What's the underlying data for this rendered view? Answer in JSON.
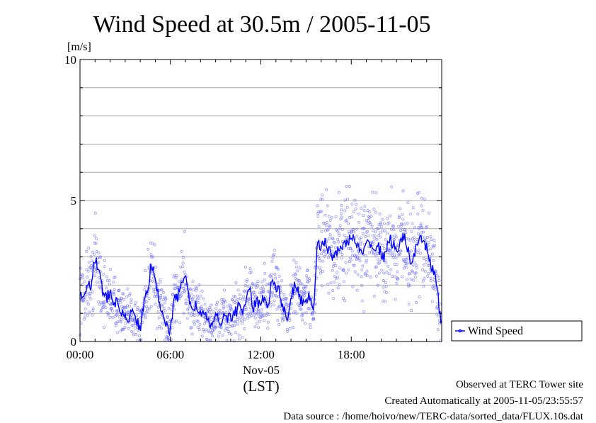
{
  "chart_data": {
    "type": "line",
    "title": "Wind Speed at 30.5m / 2005-11-05",
    "ylabel": "[m/s]",
    "xlabel": "(LST)",
    "date_label": "Nov-05",
    "x_unit": "hours",
    "xlim": [
      0,
      24
    ],
    "ylim": [
      0,
      10
    ],
    "x_ticks": [
      {
        "value": 0,
        "label": "00:00"
      },
      {
        "value": 6,
        "label": "06:00"
      },
      {
        "value": 12,
        "label": "12:00"
      },
      {
        "value": 18,
        "label": "18:00"
      }
    ],
    "y_ticks": [
      {
        "value": 0,
        "label": "0"
      },
      {
        "value": 5,
        "label": "5"
      },
      {
        "value": 10,
        "label": "10"
      }
    ],
    "gridlines_y": [
      1,
      2,
      3,
      4,
      5,
      6,
      7,
      8,
      9
    ],
    "grid": true,
    "legend_position": "right",
    "series": [
      {
        "name": "Wind Speed",
        "color": "#0000ff",
        "scatter_color": "#6b6bff",
        "x": [
          0.0,
          0.25,
          0.5,
          0.75,
          1.0,
          1.25,
          1.5,
          1.75,
          2.0,
          2.25,
          2.5,
          2.75,
          3.0,
          3.25,
          3.5,
          3.75,
          4.0,
          4.25,
          4.5,
          4.75,
          5.0,
          5.25,
          5.5,
          5.75,
          6.0,
          6.25,
          6.5,
          6.75,
          7.0,
          7.25,
          7.5,
          7.75,
          8.0,
          8.25,
          8.5,
          8.75,
          9.0,
          9.25,
          9.5,
          9.75,
          10.0,
          10.25,
          10.5,
          10.75,
          11.0,
          11.25,
          11.5,
          11.75,
          12.0,
          12.25,
          12.5,
          12.75,
          13.0,
          13.25,
          13.5,
          13.75,
          14.0,
          14.25,
          14.5,
          14.75,
          15.0,
          15.25,
          15.5,
          15.75,
          16.0,
          16.25,
          16.5,
          16.75,
          17.0,
          17.25,
          17.5,
          17.75,
          18.0,
          18.25,
          18.5,
          18.75,
          19.0,
          19.25,
          19.5,
          19.75,
          20.0,
          20.25,
          20.5,
          20.75,
          21.0,
          21.25,
          21.5,
          21.75,
          22.0,
          22.25,
          22.5,
          22.75,
          23.0,
          23.25,
          23.5,
          23.75,
          23.95
        ],
        "y": [
          1.8,
          1.5,
          2.2,
          2.0,
          3.0,
          2.5,
          1.8,
          1.5,
          1.7,
          1.4,
          1.3,
          1.1,
          0.8,
          0.9,
          1.0,
          0.8,
          0.5,
          1.3,
          1.9,
          2.8,
          2.0,
          1.5,
          1.0,
          0.6,
          0.3,
          1.5,
          1.6,
          2.2,
          2.3,
          1.4,
          1.2,
          1.3,
          1.0,
          0.9,
          0.7,
          0.6,
          0.8,
          0.7,
          0.9,
          0.8,
          0.9,
          1.0,
          1.2,
          1.0,
          1.5,
          1.8,
          1.2,
          1.4,
          1.3,
          1.6,
          1.3,
          2.3,
          2.0,
          1.7,
          1.2,
          0.8,
          1.5,
          2.0,
          1.7,
          1.4,
          1.5,
          1.6,
          1.1,
          3.6,
          3.4,
          3.5,
          3.2,
          3.0,
          3.2,
          3.4,
          3.3,
          3.6,
          3.7,
          3.5,
          3.3,
          3.0,
          3.4,
          3.6,
          3.2,
          3.4,
          3.1,
          3.0,
          3.6,
          3.5,
          3.3,
          3.4,
          3.8,
          3.2,
          2.8,
          3.2,
          3.5,
          3.6,
          3.3,
          2.8,
          2.5,
          1.6,
          0.6
        ]
      }
    ]
  },
  "footer": {
    "observed": "Observed at TERC Tower site",
    "created": "Created Automatically at 2005-11-05/23:55:57",
    "source": "Data source : /home/hoivo/new/TERC-data/sorted_data/FLUX.10s.dat"
  }
}
